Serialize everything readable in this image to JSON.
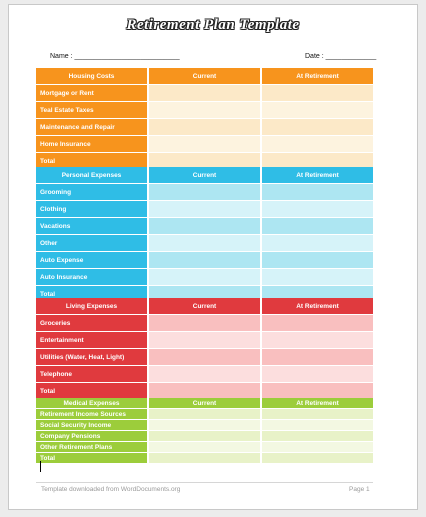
{
  "title": "Retirement Plan Template",
  "name_label": "Name : ___________________________",
  "date_label": "Date : _____________",
  "colors": {
    "housing": {
      "label": "#f7941d",
      "current": "#fce9c8",
      "retire": "#fdf3df"
    },
    "personal": {
      "label": "#2fbde6",
      "current": "#ade6f2",
      "retire": "#d6f3f9"
    },
    "living": {
      "label": "#e03a3e",
      "current": "#f9bfbf",
      "retire": "#fcdede"
    },
    "medical": {
      "label": "#9ccd3b",
      "current": "#e8f2c8",
      "retire": "#f3f8e2"
    }
  },
  "sections": [
    {
      "key": "housing",
      "header": "Housing Costs",
      "col_current": "Current",
      "col_retire": "At Retirement",
      "items": [
        "Mortgage or Rent",
        "Teal Estate Taxes",
        "Maintenance and Repair",
        "Home Insurance",
        "Total"
      ]
    },
    {
      "key": "personal",
      "header": "Personal Expenses",
      "col_current": "Current",
      "col_retire": "At Retirement",
      "items": [
        "Grooming",
        "Clothing",
        "Vacations",
        "Other",
        "Auto Expense",
        "Auto Insurance",
        "Total"
      ]
    },
    {
      "key": "living",
      "header": "Living Expenses",
      "col_current": "Current",
      "col_retire": "At Retirement",
      "items": [
        "Groceries",
        "Entertainment",
        "Utilities (Water, Heat, Light)",
        "Telephone",
        "Total"
      ]
    },
    {
      "key": "medical",
      "header": "Medical Expenses",
      "col_current": "Current",
      "col_retire": "At Retirement",
      "items": [
        "Retirement Income Sources",
        "Social Security Income",
        "Company Pensions",
        "Other Retirement Plans",
        "Total"
      ]
    }
  ],
  "footer_left": "Template downloaded from WordDocuments.org",
  "footer_right": "Page 1"
}
